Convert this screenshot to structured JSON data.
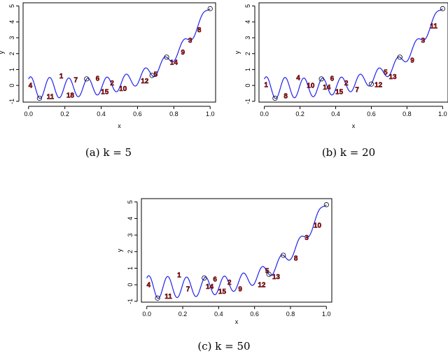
{
  "chart_data": [
    {
      "type": "line",
      "caption": "(a) k = 5",
      "xlabel": "x",
      "ylabel": "y",
      "xlim": [
        -0.03,
        1.03
      ],
      "ylim": [
        -1.05,
        5.2
      ],
      "xticks": [
        "0.0",
        "0.2",
        "0.4",
        "0.6",
        "0.8",
        "1.0"
      ],
      "yticks": [
        "-1",
        "0",
        "1",
        "2",
        "3",
        "4",
        "5"
      ],
      "line_color": "#2222ee",
      "label_color": "#e8000b",
      "circles_x": [
        0.06,
        0.32,
        0.68,
        0.76,
        1.0
      ],
      "labels": [
        {
          "text": "4",
          "x": 0.01,
          "y": 0.0
        },
        {
          "text": "11",
          "x": 0.12,
          "y": -0.7
        },
        {
          "text": "1",
          "x": 0.18,
          "y": 0.6
        },
        {
          "text": "18",
          "x": 0.23,
          "y": -0.6
        },
        {
          "text": "7",
          "x": 0.26,
          "y": 0.35
        },
        {
          "text": "6",
          "x": 0.38,
          "y": 0.45
        },
        {
          "text": "15",
          "x": 0.42,
          "y": -0.4
        },
        {
          "text": "2",
          "x": 0.46,
          "y": 0.15
        },
        {
          "text": "10",
          "x": 0.52,
          "y": -0.2
        },
        {
          "text": "12",
          "x": 0.64,
          "y": 0.3
        },
        {
          "text": "5",
          "x": 0.7,
          "y": 0.7
        },
        {
          "text": "14",
          "x": 0.8,
          "y": 1.45
        },
        {
          "text": "9",
          "x": 0.85,
          "y": 2.1
        },
        {
          "text": "3",
          "x": 0.89,
          "y": 2.85
        },
        {
          "text": "8",
          "x": 0.94,
          "y": 3.5
        }
      ]
    },
    {
      "type": "line",
      "caption": "(b) k = 20",
      "xlabel": "x",
      "ylabel": "y",
      "xlim": [
        -0.03,
        1.03
      ],
      "ylim": [
        -1.05,
        5.2
      ],
      "xticks": [
        "0.0",
        "0.2",
        "0.4",
        "0.6",
        "0.8",
        "1.0"
      ],
      "yticks": [
        "-1",
        "0",
        "1",
        "2",
        "3",
        "4",
        "5"
      ],
      "line_color": "#2222ee",
      "label_color": "#e8000b",
      "circles_x": [
        0.06,
        0.32,
        0.6,
        0.76,
        1.0
      ],
      "labels": [
        {
          "text": "1",
          "x": 0.01,
          "y": 0.05
        },
        {
          "text": "8",
          "x": 0.12,
          "y": -0.65
        },
        {
          "text": "4",
          "x": 0.19,
          "y": 0.5
        },
        {
          "text": "10",
          "x": 0.26,
          "y": 0.0
        },
        {
          "text": "14",
          "x": 0.35,
          "y": -0.1
        },
        {
          "text": "6",
          "x": 0.38,
          "y": 0.45
        },
        {
          "text": "15",
          "x": 0.42,
          "y": -0.4
        },
        {
          "text": "2",
          "x": 0.46,
          "y": 0.15
        },
        {
          "text": "7",
          "x": 0.52,
          "y": -0.25
        },
        {
          "text": "12",
          "x": 0.64,
          "y": 0.05
        },
        {
          "text": "5",
          "x": 0.68,
          "y": 0.85
        },
        {
          "text": "13",
          "x": 0.72,
          "y": 0.55
        },
        {
          "text": "9",
          "x": 0.83,
          "y": 1.6
        },
        {
          "text": "3",
          "x": 0.89,
          "y": 2.85
        },
        {
          "text": "11",
          "x": 0.95,
          "y": 3.75
        }
      ]
    },
    {
      "type": "line",
      "caption": "(c) k = 50",
      "xlabel": "x",
      "ylabel": "y",
      "xlim": [
        -0.03,
        1.03
      ],
      "ylim": [
        -1.05,
        5.2
      ],
      "xticks": [
        "0.0",
        "0.2",
        "0.4",
        "0.6",
        "0.8",
        "1.0"
      ],
      "yticks": [
        "-1",
        "0",
        "1",
        "2",
        "3",
        "4",
        "5"
      ],
      "line_color": "#2222ee",
      "label_color": "#e8000b",
      "circles_x": [
        0.06,
        0.32,
        0.68,
        0.76,
        1.0
      ],
      "labels": [
        {
          "text": "4",
          "x": 0.01,
          "y": 0.0
        },
        {
          "text": "11",
          "x": 0.12,
          "y": -0.7
        },
        {
          "text": "1",
          "x": 0.18,
          "y": 0.6
        },
        {
          "text": "7",
          "x": 0.23,
          "y": -0.25
        },
        {
          "text": "14",
          "x": 0.35,
          "y": -0.1
        },
        {
          "text": "6",
          "x": 0.38,
          "y": 0.35
        },
        {
          "text": "15",
          "x": 0.42,
          "y": -0.4
        },
        {
          "text": "2",
          "x": 0.46,
          "y": 0.15
        },
        {
          "text": "9",
          "x": 0.52,
          "y": -0.25
        },
        {
          "text": "12",
          "x": 0.64,
          "y": 0.0
        },
        {
          "text": "5",
          "x": 0.67,
          "y": 0.85
        },
        {
          "text": "13",
          "x": 0.72,
          "y": 0.5
        },
        {
          "text": "8",
          "x": 0.83,
          "y": 1.6
        },
        {
          "text": "3",
          "x": 0.89,
          "y": 2.85
        },
        {
          "text": "10",
          "x": 0.95,
          "y": 3.6
        }
      ]
    }
  ]
}
